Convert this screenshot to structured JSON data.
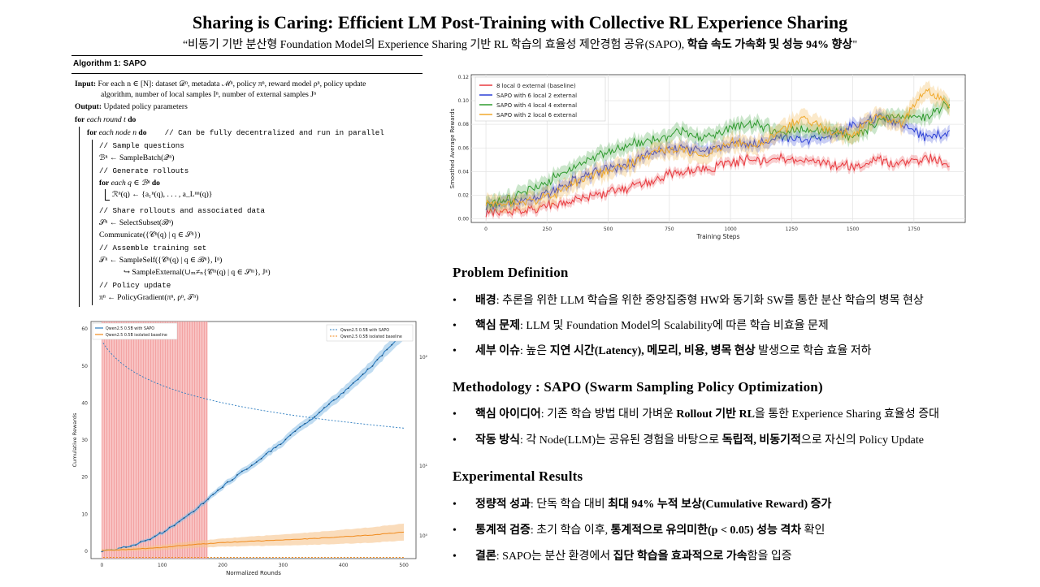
{
  "header": {
    "title": "Sharing is Caring: Efficient LM Post-Training with Collective RL Experience Sharing",
    "subtitle_pre": "“비동기 기반 분산형 Foundation  Model의 Experience  Sharing  기반 RL 학습의 효율성 제안경험 공유(SAPO), ",
    "subtitle_bold": "학습 속도 가속화 및 성능 94% 향상",
    "subtitle_post": "\""
  },
  "algorithm": {
    "heading": "Algorithm 1: SAPO",
    "input_label": "Input:",
    "input_text1": "For each n ∈ [N]: dataset 𝒟ⁿ, metadata ℳⁿ, policy πⁿ, reward model ρⁿ, policy update",
    "input_text2": "algorithm, number of local samples Iⁿ, number of external samples Jⁿ",
    "output_label": "Output:",
    "output_text": "Updated policy parameters",
    "for_round_kw": "for",
    "for_round_text": "each round t",
    "do_kw": "do",
    "for_node_kw": "for",
    "for_node_text": "each node n",
    "for_node_do": "do",
    "for_node_comment": "// Can be fully decentralized and run in parallel",
    "c_sample": "// Sample questions",
    "l_sample": "ℬⁿ ← SampleBatch(𝒬ⁿ)",
    "c_gen": "// Generate rollouts",
    "for_q_kw": "for",
    "for_q_text": "each q ∈ ℬⁿ",
    "for_q_do": "do",
    "l_rollout": "ℛⁿ(q) ← {a₁ⁿ(q), . . . , a_Lⁿⁿ(q)}",
    "c_share": "// Share rollouts and associated data",
    "l_select": "𝒮ⁿ ← SelectSubset(ℬⁿ)",
    "l_comm": "Communicate({𝒞ⁿ(q) | q ∈ 𝒮ⁿ})",
    "c_assemble": "// Assemble training set",
    "l_self": "𝒯ⁿ ← SampleSelf({𝒞ⁿ(q) | q ∈ ℬⁿ}, Iⁿ)",
    "l_ext": "↪  SampleExternal(∪ₘ≠ₙ{𝒞ᵐ(q) | q ∈ 𝒮ᵐ}, Jⁿ)",
    "c_policy": "// Policy update",
    "l_pg": "πⁿ ← PolicyGradient(πⁿ, ρⁿ, 𝒯ⁿ)"
  },
  "chart_data": [
    {
      "type": "line",
      "title": "",
      "xlabel": "Training Steps",
      "ylabel": "Smoothed Average Rewards",
      "xlim": [
        -60,
        1960
      ],
      "ylim": [
        -0.003,
        0.122
      ],
      "x_ticks": [
        0,
        250,
        500,
        750,
        1000,
        1250,
        1500,
        1750
      ],
      "y_ticks": [
        0.0,
        0.02,
        0.04,
        0.06,
        0.08,
        0.1,
        0.12
      ],
      "y_tick_labels": [
        "0.00",
        "0.02",
        "0.04",
        "0.06",
        "0.08",
        "0.10",
        "0.12"
      ],
      "grid": true,
      "legend_position": "top-left",
      "series": [
        {
          "name": "8 local 0 external (baseline)",
          "color": "#e8383d",
          "x": [
            0,
            100,
            200,
            300,
            400,
            500,
            600,
            700,
            800,
            900,
            1000,
            1100,
            1200,
            1300,
            1400,
            1500,
            1600,
            1700,
            1800,
            1900
          ],
          "y": [
            0.005,
            0.007,
            0.009,
            0.013,
            0.018,
            0.022,
            0.027,
            0.034,
            0.04,
            0.043,
            0.048,
            0.05,
            0.051,
            0.049,
            0.047,
            0.044,
            0.049,
            0.047,
            0.052,
            0.047
          ]
        },
        {
          "name": "SAPO with 6 local 2 external",
          "color": "#2b3fd6",
          "x": [
            0,
            100,
            200,
            300,
            400,
            500,
            600,
            700,
            800,
            900,
            1000,
            1100,
            1200,
            1300,
            1400,
            1500,
            1600,
            1700,
            1800,
            1900
          ],
          "y": [
            0.011,
            0.014,
            0.018,
            0.026,
            0.036,
            0.042,
            0.047,
            0.058,
            0.06,
            0.058,
            0.063,
            0.064,
            0.07,
            0.066,
            0.071,
            0.078,
            0.086,
            0.081,
            0.068,
            0.074
          ]
        },
        {
          "name": "SAPO with 4 local 4 external",
          "color": "#2e9a2e",
          "x": [
            0,
            100,
            200,
            300,
            400,
            500,
            600,
            700,
            800,
            900,
            1000,
            1100,
            1200,
            1300,
            1400,
            1500,
            1600,
            1700,
            1800,
            1900
          ],
          "y": [
            0.013,
            0.016,
            0.027,
            0.037,
            0.048,
            0.056,
            0.064,
            0.068,
            0.074,
            0.069,
            0.078,
            0.08,
            0.073,
            0.075,
            0.074,
            0.069,
            0.082,
            0.086,
            0.087,
            0.099
          ]
        },
        {
          "name": "SAPO with 2 local 6 external",
          "color": "#f0a92b",
          "x": [
            0,
            100,
            200,
            300,
            400,
            500,
            600,
            700,
            800,
            900,
            1000,
            1100,
            1200,
            1300,
            1400,
            1500,
            1600,
            1700,
            1800,
            1900
          ],
          "y": [
            0.012,
            0.013,
            0.016,
            0.022,
            0.036,
            0.04,
            0.048,
            0.058,
            0.059,
            0.054,
            0.066,
            0.061,
            0.074,
            0.085,
            0.076,
            0.071,
            0.088,
            0.08,
            0.11,
            0.095
          ]
        }
      ]
    },
    {
      "type": "line",
      "title": "",
      "xlabel": "Normalized Rounds",
      "ylabel": "Cumulative Rewards",
      "xlim": [
        -18,
        520
      ],
      "ylim": [
        -2,
        62
      ],
      "x_ticks": [
        0,
        100,
        200,
        300,
        400,
        500
      ],
      "y_ticks": [
        0,
        10,
        20,
        30,
        40,
        50,
        60
      ],
      "y2_tick_labels": [
        "10²",
        "10¹",
        "10⁰"
      ],
      "shaded_x_range": [
        0,
        175
      ],
      "legend_position": "top-left",
      "legend_right": [
        "Qwen2.5 0.5B with SAPO",
        "Qwen2.5 0.5B isolated baseline"
      ],
      "series": [
        {
          "name": "Qwen2.5 0.5B with SAPO",
          "color": "#2a7bbf",
          "x": [
            0,
            25,
            50,
            75,
            100,
            125,
            150,
            175,
            200,
            225,
            250,
            275,
            300,
            325,
            350,
            375,
            400,
            425,
            450,
            475,
            500
          ],
          "y": [
            0,
            0.6,
            1.5,
            3,
            5,
            7.5,
            10.5,
            14,
            17.5,
            20.5,
            23.5,
            26.5,
            29.5,
            33,
            36,
            39.5,
            43,
            46.5,
            50.5,
            55,
            59
          ]
        },
        {
          "name": "Qwen2.5 0.5B isolated baseline",
          "color": "#f08a1c",
          "x": [
            0,
            50,
            100,
            150,
            200,
            250,
            300,
            350,
            400,
            450,
            500
          ],
          "y": [
            0.2,
            0.5,
            1.0,
            1.8,
            2.3,
            2.7,
            3.0,
            3.4,
            3.9,
            4.4,
            5.2
          ]
        }
      ]
    }
  ],
  "sections": [
    {
      "title": "Problem  Definition",
      "bullets": [
        {
          "bold": "배경",
          "text": ": 추론을 위한 LLM 학습을 위한 중앙집중형 HW와 동기화 SW를 통한 분산 학습의 병목 현상"
        },
        {
          "bold": "핵심 문제",
          "text": ": LLM 및 Foundation  Model의 Scalability에  따른 학습 비효율 문제"
        },
        {
          "bold": "세부 이슈",
          "text1": ": 높은 ",
          "bold2": "지연 시간(Latency), 메모리, 비용, 병목 현상",
          "text2": " 발생으로 학습 효율 저하"
        }
      ]
    },
    {
      "title": "Methodology  : SAPO (Swarm  Sampling  Policy Optimization)",
      "bullets": [
        {
          "bold": "핵심 아이디어",
          "text1": ": 기존 학습 방법 대비 가벼운 ",
          "bold2": "Rollout 기반 RL",
          "text2": "을 통한 Experience  Sharing  효율성 증대"
        },
        {
          "bold": "작동 방식",
          "text1": ": 각 Node(LLM)는  공유된 경험을 바탕으로 ",
          "bold2": "독립적, 비동기적",
          "text2": "으로 자신의 Policy  Update"
        }
      ]
    },
    {
      "title": "Experimental  Results",
      "bullets": [
        {
          "bold": "정량적 성과",
          "text1": ": 단독 학습 대비 ",
          "bold2": "최대 94% 누적 보상(Cumulative  Reward) 증가",
          "text2": ""
        },
        {
          "bold": "통계적 검증",
          "text1": ": 초기 학습 이후, ",
          "bold2": "통계적으로 유의미한(p  < 0.05) 성능 격차",
          "text2": " 확인"
        },
        {
          "bold": "결론",
          "text1": ": SAPO는 분산 환경에서 ",
          "bold2": "집단 학습을 효과적으로 가속",
          "text2": "함을 입증"
        }
      ]
    }
  ],
  "bullet_glyph": "•",
  "colors": {
    "shade": "#f7b7b7"
  }
}
